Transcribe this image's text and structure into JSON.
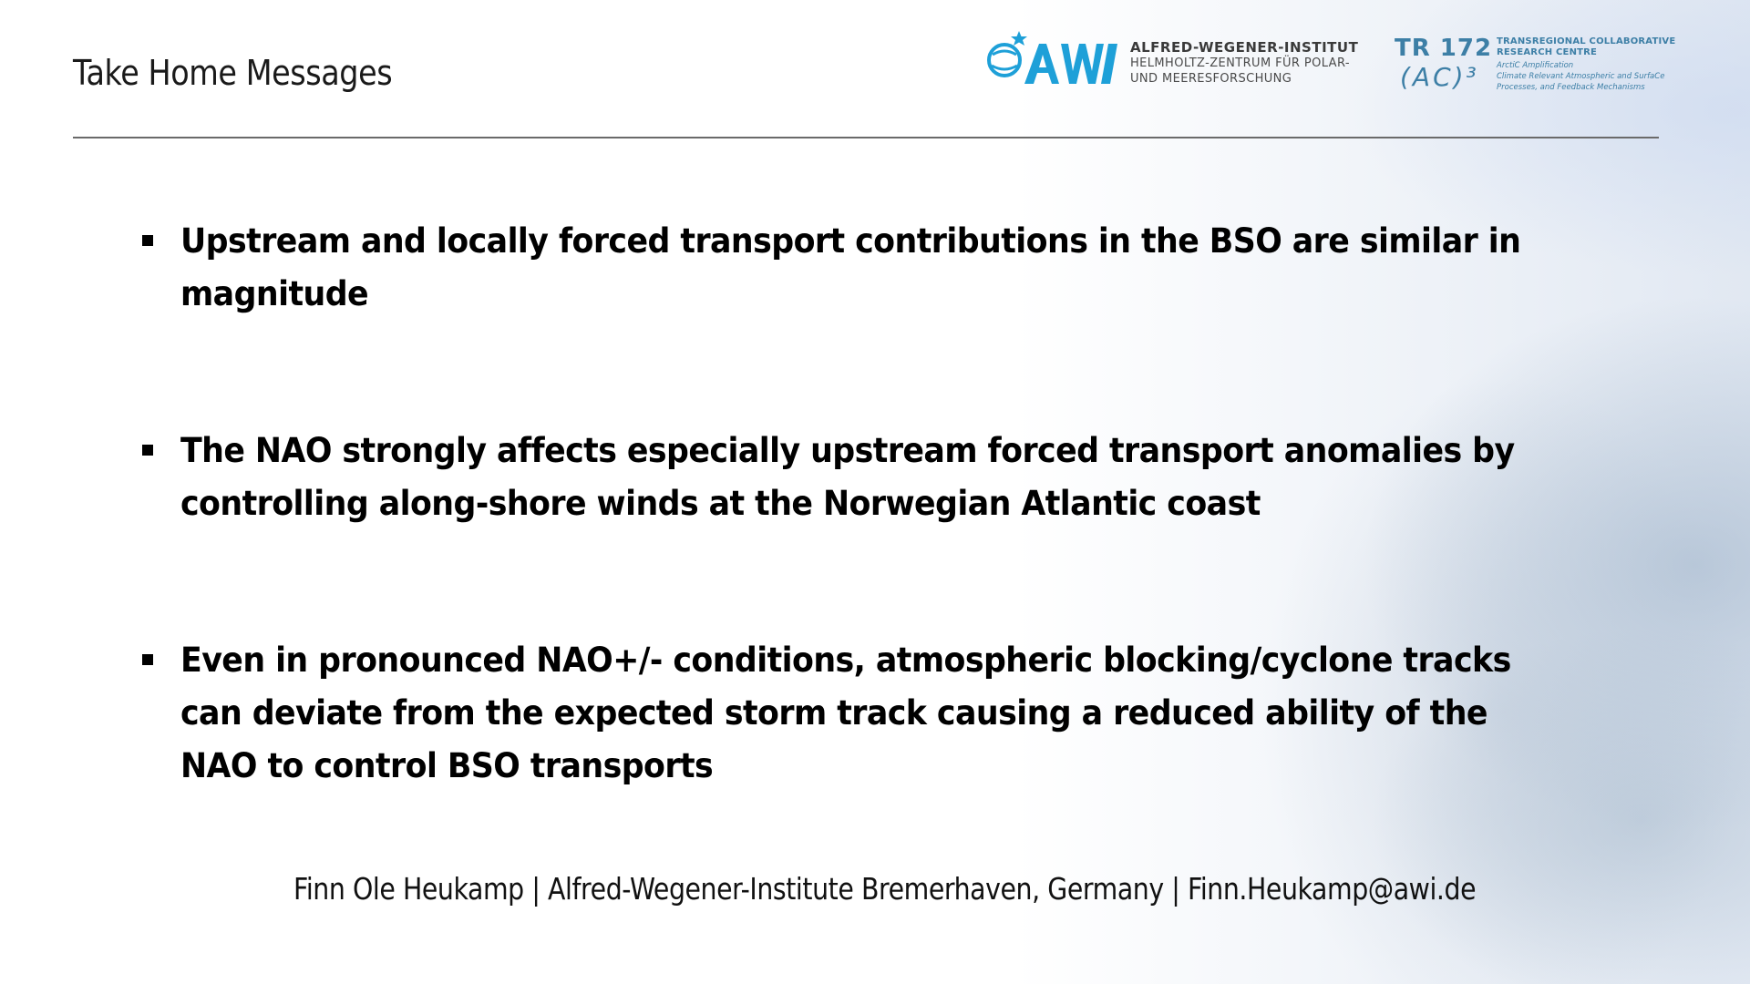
{
  "slide": {
    "title": "Take Home Messages"
  },
  "logos": {
    "awi": {
      "mark": "AWI",
      "line1": "ALFRED-WEGENER-INSTITUT",
      "line2": "HELMHOLTZ-ZENTRUM FÜR POLAR-",
      "line3": "UND MEERESFORSCHUNG",
      "color": "#1ea0d8"
    },
    "tr172": {
      "number": "TR 172",
      "ac": "(AC)³",
      "heading1": "TRANSREGIONAL COLLABORATIVE",
      "heading2": "RESEARCH CENTRE",
      "sub1": "ArctiC Amplification",
      "sub2": "Climate Relevant Atmospheric and SurfaCe",
      "sub3": "Processes, and Feedback Mechanisms",
      "color": "#3d7fa6"
    }
  },
  "bullets": [
    {
      "text": "Upstream and locally forced transport contributions in the BSO are similar in magnitude"
    },
    {
      "text": "The NAO strongly affects especially upstream forced transport anomalies by controlling along-shore winds at the Norwegian Atlantic coast"
    },
    {
      "text": "Even in pronounced NAO+/- conditions, atmospheric blocking/cyclone tracks can deviate from the expected storm track causing a reduced ability of the NAO to control BSO transports"
    }
  ],
  "footer": {
    "text": "Finn Ole Heukamp | Alfred-Wegener-Institute Bremerhaven, Germany | Finn.Heukamp@awi.de"
  }
}
